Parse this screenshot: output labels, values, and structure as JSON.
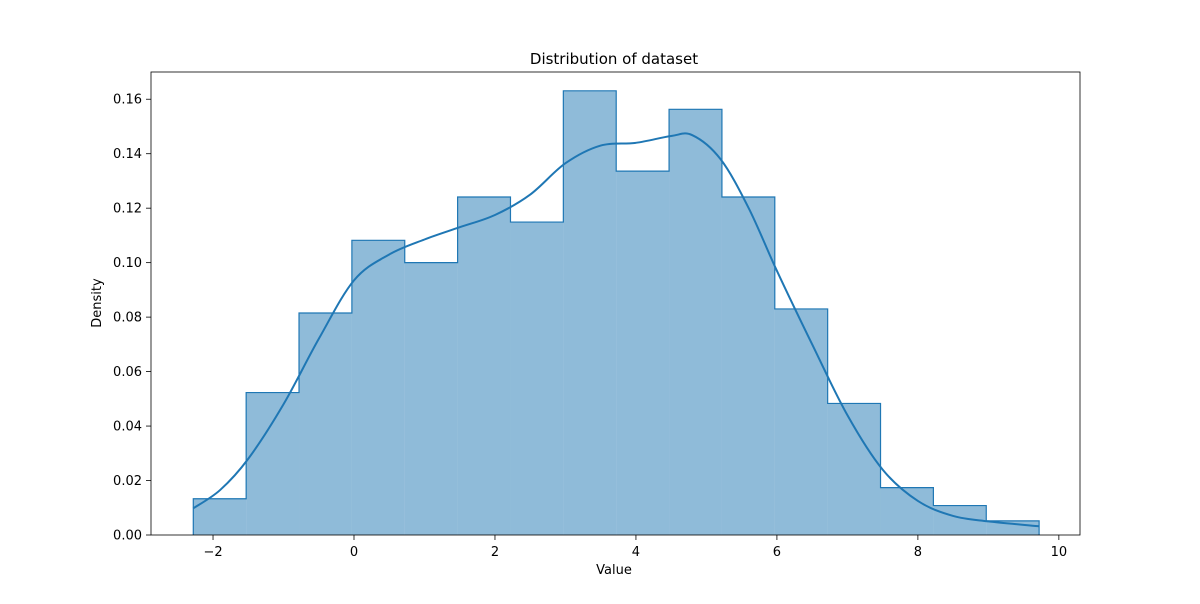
{
  "chart_data": {
    "type": "bar",
    "title": "Distribution of dataset",
    "xlabel": "Value",
    "ylabel": "Density",
    "xlim": [
      -2.88,
      10.3
    ],
    "ylim": [
      0,
      0.17
    ],
    "xticks": [
      -2,
      0,
      2,
      4,
      6,
      8,
      10
    ],
    "xtick_labels": [
      "−2",
      "0",
      "2",
      "4",
      "6",
      "8",
      "10"
    ],
    "yticks": [
      0.0,
      0.02,
      0.04,
      0.06,
      0.08,
      0.1,
      0.12,
      0.14,
      0.16
    ],
    "ytick_labels": [
      "0.00",
      "0.02",
      "0.04",
      "0.06",
      "0.08",
      "0.10",
      "0.12",
      "0.14",
      "0.16"
    ],
    "grid": false,
    "legend": "none",
    "colors": {
      "fill": "#1f77b4",
      "fill_opacity": 0.5,
      "edge": "#1f77b4",
      "kde": "#1f77b4"
    },
    "histogram": {
      "bin_edges": [
        -2.28,
        -1.53,
        -0.78,
        -0.03,
        0.72,
        1.47,
        2.22,
        2.97,
        3.72,
        4.47,
        5.22,
        5.97,
        6.72,
        7.47,
        8.22,
        8.97,
        9.72
      ],
      "density": [
        0.0133,
        0.0523,
        0.0815,
        0.1082,
        0.1,
        0.1241,
        0.1149,
        0.1631,
        0.1336,
        0.1563,
        0.1241,
        0.083,
        0.0483,
        0.0174,
        0.0108,
        0.0052
      ]
    },
    "kde": {
      "x": [
        -2.28,
        -1.9,
        -1.5,
        -1.0,
        -0.5,
        0.0,
        0.5,
        1.0,
        1.5,
        2.0,
        2.5,
        3.0,
        3.5,
        4.0,
        4.5,
        4.8,
        5.2,
        5.6,
        6.0,
        6.5,
        7.0,
        7.5,
        8.0,
        8.5,
        9.0,
        9.72
      ],
      "y": [
        0.0098,
        0.0165,
        0.028,
        0.048,
        0.072,
        0.0935,
        0.103,
        0.1085,
        0.113,
        0.1175,
        0.125,
        0.1365,
        0.143,
        0.144,
        0.1465,
        0.1468,
        0.138,
        0.12,
        0.097,
        0.07,
        0.044,
        0.024,
        0.0125,
        0.007,
        0.005,
        0.0032
      ]
    }
  }
}
